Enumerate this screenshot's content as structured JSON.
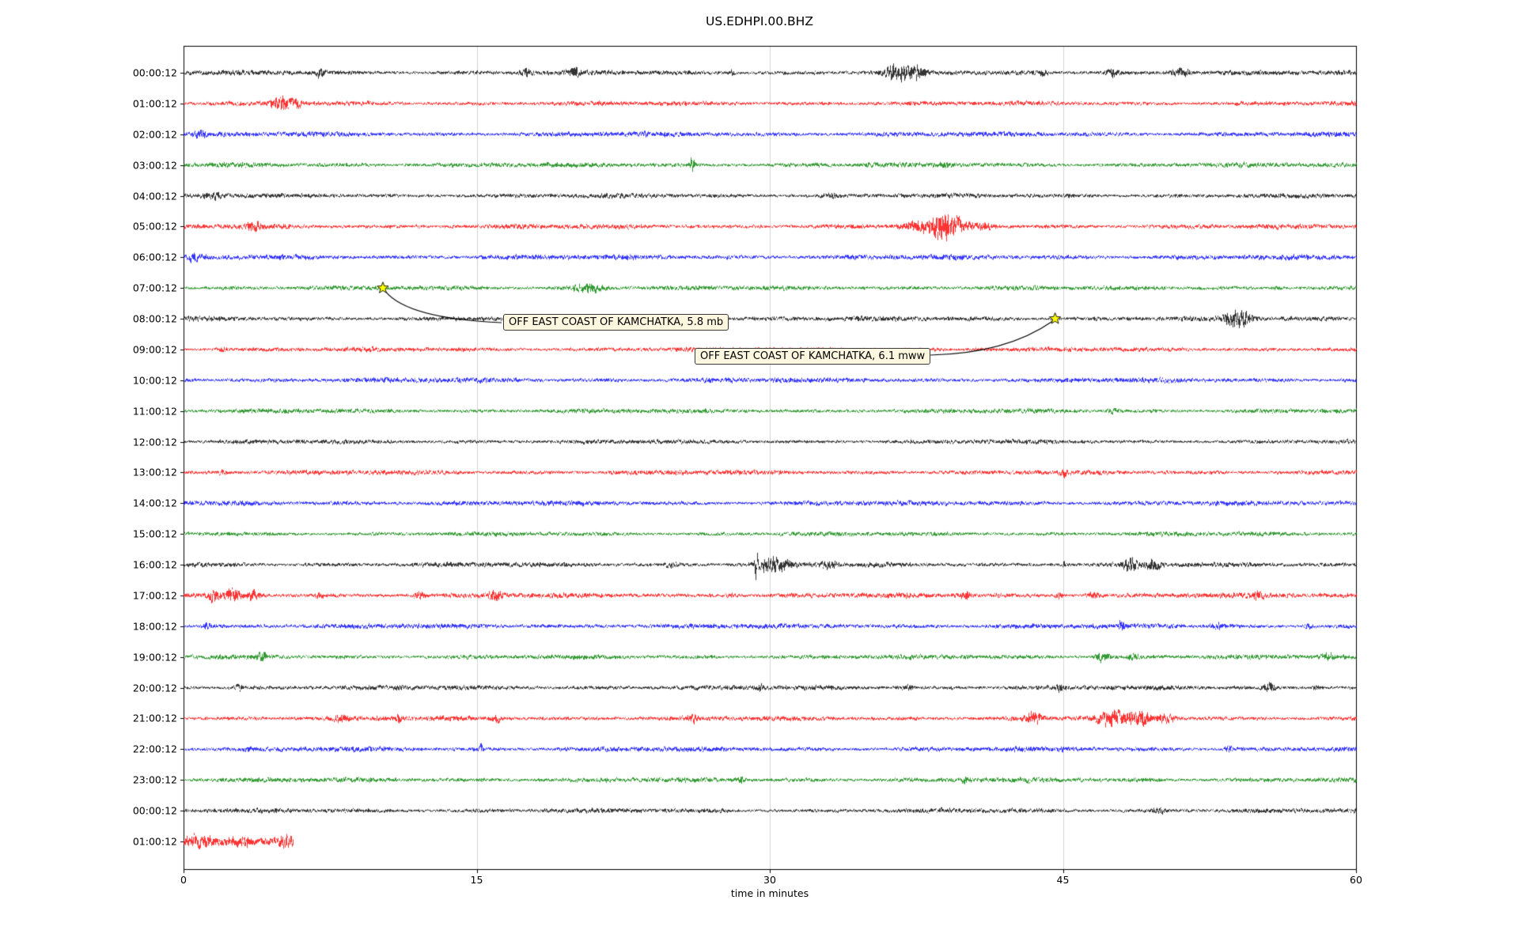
{
  "title": "US.EDHPI.00.BHZ",
  "chart_data": {
    "type": "line",
    "subtype": "seismogram-helicorder-dayplot",
    "station": "US.EDHPI.00.BHZ",
    "title": "US.EDHPI.00.BHZ",
    "xlabel": "time in minutes",
    "xlim": [
      0,
      60
    ],
    "x_ticks": [
      0,
      15,
      30,
      45,
      60
    ],
    "grid": "vertical gridlines at 15, 30, 45",
    "legend": "none",
    "trace_color_cycle": [
      "#000000",
      "#ff0000",
      "#0000ff",
      "#008000"
    ],
    "marker_color": "#ffff00",
    "rows": [
      {
        "label": "00:00:12",
        "color": "#000000",
        "duration": 60,
        "base_amp": 2.4,
        "events": [
          [
            7,
            2.2,
            0.15
          ],
          [
            17.5,
            1.6,
            0.2
          ],
          [
            20,
            1.6,
            0.15
          ],
          [
            28,
            1.3,
            0.15
          ],
          [
            36.5,
            2.6,
            0.5
          ],
          [
            37.5,
            1.6,
            0.3
          ],
          [
            44,
            1.3,
            0.15
          ],
          [
            47.5,
            2.0,
            0.25
          ],
          [
            51,
            2.4,
            0.3
          ]
        ]
      },
      {
        "label": "01:00:12",
        "color": "#ff0000",
        "duration": 60,
        "base_amp": 2.3,
        "events": [
          [
            5,
            3.0,
            0.3
          ],
          [
            5.7,
            1.6,
            0.25
          ]
        ]
      },
      {
        "label": "02:00:12",
        "color": "#0000ff",
        "duration": 60,
        "base_amp": 2.5,
        "events": [
          [
            0.8,
            1.2,
            0.2
          ]
        ]
      },
      {
        "label": "03:00:12",
        "color": "#008000",
        "duration": 60,
        "base_amp": 2.4,
        "events": [
          [
            26,
            3.2,
            0.1
          ],
          [
            39,
            1.1,
            0.2
          ]
        ]
      },
      {
        "label": "04:00:12",
        "color": "#000000",
        "duration": 60,
        "base_amp": 2.3,
        "events": [
          [
            1.5,
            1.3,
            0.3
          ],
          [
            33,
            1.0,
            0.3
          ]
        ]
      },
      {
        "label": "05:00:12",
        "color": "#ff0000",
        "duration": 60,
        "base_amp": 2.4,
        "events": [
          [
            3.5,
            1.4,
            0.4
          ],
          [
            37.5,
            2.0,
            0.5
          ],
          [
            38.8,
            5.0,
            0.35
          ],
          [
            39.6,
            2.4,
            0.4
          ],
          [
            41,
            1.4,
            0.3
          ]
        ]
      },
      {
        "label": "06:00:12",
        "color": "#0000ff",
        "duration": 60,
        "base_amp": 2.5,
        "events": [
          [
            0.5,
            1.1,
            0.2
          ]
        ]
      },
      {
        "label": "07:00:12",
        "color": "#008000",
        "duration": 60,
        "base_amp": 2.3,
        "events": [
          [
            20.5,
            1.9,
            0.5
          ],
          [
            21.2,
            1.3,
            0.3
          ],
          [
            56,
            1.0,
            0.2
          ]
        ]
      },
      {
        "label": "08:00:12",
        "color": "#000000",
        "duration": 60,
        "base_amp": 2.4,
        "events": [
          [
            53.6,
            1.8,
            0.3
          ],
          [
            54.1,
            2.8,
            0.35
          ]
        ]
      },
      {
        "label": "09:00:12",
        "color": "#ff0000",
        "duration": 60,
        "base_amp": 2.3,
        "events": [
          [
            2,
            1.1,
            0.2
          ]
        ]
      },
      {
        "label": "10:00:12",
        "color": "#0000ff",
        "duration": 60,
        "base_amp": 2.5,
        "events": []
      },
      {
        "label": "11:00:12",
        "color": "#008000",
        "duration": 60,
        "base_amp": 2.3,
        "events": [
          [
            47.5,
            1.3,
            0.2
          ]
        ]
      },
      {
        "label": "12:00:12",
        "color": "#000000",
        "duration": 60,
        "base_amp": 2.2,
        "events": []
      },
      {
        "label": "13:00:12",
        "color": "#ff0000",
        "duration": 60,
        "base_amp": 2.4,
        "events": [
          [
            2,
            1.1,
            0.2
          ],
          [
            45,
            1.6,
            0.1
          ]
        ]
      },
      {
        "label": "14:00:12",
        "color": "#0000ff",
        "duration": 60,
        "base_amp": 2.5,
        "events": []
      },
      {
        "label": "15:00:12",
        "color": "#008000",
        "duration": 60,
        "base_amp": 2.2,
        "events": []
      },
      {
        "label": "16:00:12",
        "color": "#000000",
        "duration": 60,
        "base_amp": 2.4,
        "events": [
          [
            25,
            1.3,
            0.2
          ],
          [
            29.3,
            6.0,
            0.07
          ],
          [
            29.9,
            2.3,
            0.3
          ],
          [
            30.6,
            1.8,
            0.4
          ],
          [
            33,
            1.2,
            0.3
          ],
          [
            45,
            1.6,
            0.12
          ],
          [
            48.5,
            2.6,
            0.3
          ],
          [
            49.6,
            2.0,
            0.25
          ]
        ]
      },
      {
        "label": "17:00:12",
        "color": "#ff0000",
        "duration": 60,
        "base_amp": 2.5,
        "events": [
          [
            1.5,
            1.6,
            0.2
          ],
          [
            2.5,
            2.0,
            0.25
          ],
          [
            3.6,
            1.8,
            0.2
          ],
          [
            7,
            1.3,
            0.15
          ],
          [
            12,
            1.8,
            0.2
          ],
          [
            16,
            1.7,
            0.25
          ],
          [
            28,
            1.2,
            0.2
          ],
          [
            40,
            1.5,
            0.2
          ],
          [
            44.8,
            2.0,
            0.15
          ],
          [
            46.5,
            1.7,
            0.2
          ],
          [
            55,
            1.2,
            0.2
          ]
        ]
      },
      {
        "label": "18:00:12",
        "color": "#0000ff",
        "duration": 60,
        "base_amp": 2.5,
        "events": [
          [
            1.2,
            1.7,
            0.15
          ],
          [
            48,
            1.3,
            0.15
          ],
          [
            53,
            1.1,
            0.2
          ],
          [
            57.5,
            1.3,
            0.15
          ]
        ]
      },
      {
        "label": "19:00:12",
        "color": "#008000",
        "duration": 60,
        "base_amp": 2.3,
        "events": [
          [
            4,
            1.5,
            0.2
          ],
          [
            47,
            2.6,
            0.25
          ],
          [
            48.6,
            1.3,
            0.2
          ],
          [
            58.5,
            1.2,
            0.2
          ]
        ]
      },
      {
        "label": "20:00:12",
        "color": "#000000",
        "duration": 60,
        "base_amp": 2.4,
        "events": [
          [
            2.8,
            1.8,
            0.12
          ],
          [
            29.5,
            1.6,
            0.1
          ],
          [
            37,
            1.1,
            0.2
          ],
          [
            44.8,
            1.6,
            0.1
          ],
          [
            55.5,
            2.1,
            0.2
          ],
          [
            58,
            1.7,
            0.15
          ]
        ]
      },
      {
        "label": "21:00:12",
        "color": "#ff0000",
        "duration": 60,
        "base_amp": 2.4,
        "events": [
          [
            8,
            1.3,
            0.2
          ],
          [
            11,
            1.4,
            0.15
          ],
          [
            16,
            1.5,
            0.2
          ],
          [
            26,
            1.1,
            0.2
          ],
          [
            43.5,
            1.7,
            0.3
          ],
          [
            47.5,
            2.8,
            0.5
          ],
          [
            48.9,
            2.4,
            0.4
          ],
          [
            50.3,
            2.0,
            0.3
          ]
        ]
      },
      {
        "label": "22:00:12",
        "color": "#0000ff",
        "duration": 60,
        "base_amp": 2.5,
        "events": [
          [
            15.2,
            2.2,
            0.08
          ],
          [
            53.5,
            1.5,
            0.15
          ]
        ]
      },
      {
        "label": "23:00:12",
        "color": "#008000",
        "duration": 60,
        "base_amp": 2.4,
        "events": [
          [
            28.5,
            1.3,
            0.15
          ],
          [
            40,
            1.1,
            0.15
          ]
        ]
      },
      {
        "label": "00:00:12",
        "color": "#000000",
        "duration": 60,
        "base_amp": 2.3,
        "events": [
          [
            50,
            1.0,
            0.3
          ]
        ]
      },
      {
        "label": "01:00:12",
        "color": "#ff0000",
        "duration": 5.6,
        "base_amp": 4.2,
        "events": [
          [
            0.8,
            1.2,
            0.4
          ],
          [
            3,
            1.0,
            0.4
          ],
          [
            5.2,
            1.2,
            0.2
          ]
        ]
      }
    ],
    "annotations": [
      {
        "text": "OFF EAST COAST OF KAMCHATKA, 5.8 mb",
        "row": 7,
        "row_label": "07:00:12",
        "minute": 10.2,
        "marker": "yellow-star"
      },
      {
        "text": "OFF EAST COAST OF KAMCHATKA, 6.1 mww",
        "row": 8,
        "row_label": "08:00:12",
        "minute": 44.6,
        "marker": "yellow-star"
      }
    ]
  }
}
